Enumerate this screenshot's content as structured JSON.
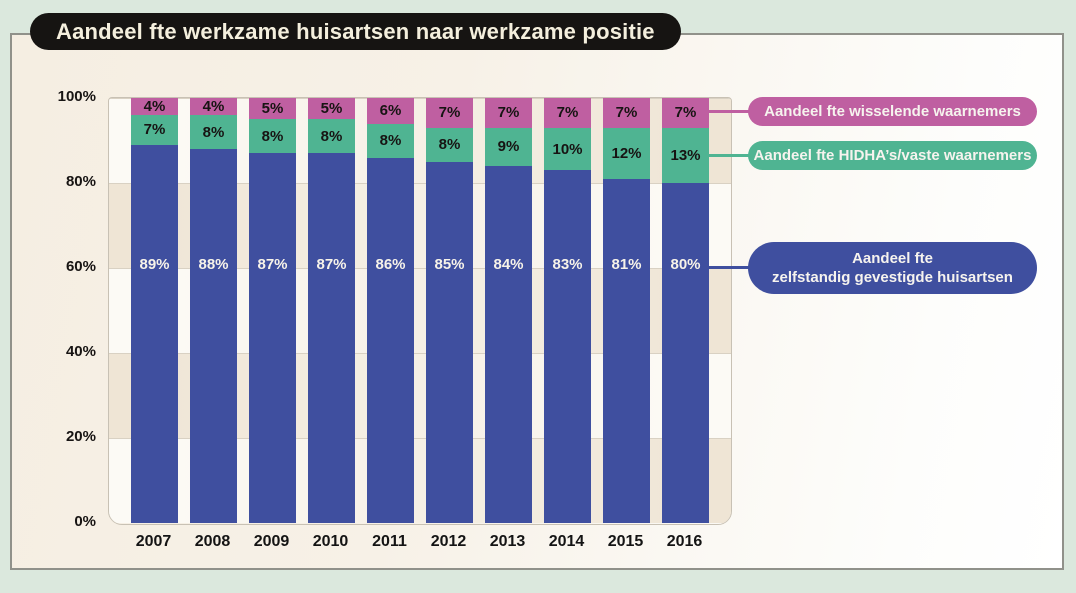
{
  "chart_data": {
    "type": "bar",
    "stacked": true,
    "title": "Aandeel fte werkzame huisartsen naar werkzame positie",
    "categories": [
      "2007",
      "2008",
      "2009",
      "2010",
      "2011",
      "2012",
      "2013",
      "2014",
      "2015",
      "2016"
    ],
    "series": [
      {
        "name": "Aandeel fte zelfstandig gevestigde huisartsen",
        "color": "#3f4f9f",
        "label_color": "#f7f3e9",
        "values": [
          89,
          88,
          87,
          87,
          86,
          85,
          84,
          83,
          81,
          80
        ]
      },
      {
        "name": "Aandeel fte HIDHA’s/vaste waarnemers",
        "color": "#4fb492",
        "label_color": "#171413",
        "values": [
          7,
          8,
          8,
          8,
          8,
          8,
          9,
          10,
          12,
          13
        ]
      },
      {
        "name": "Aandeel fte wisselende waarnemers",
        "color": "#bf5fa1",
        "label_color": "#171413",
        "values": [
          4,
          4,
          5,
          5,
          6,
          7,
          7,
          7,
          7,
          7
        ]
      }
    ],
    "ylim": [
      0,
      100
    ],
    "yticks": [
      "100%",
      "80%",
      "60%",
      "40%",
      "20%",
      "0%"
    ],
    "value_suffix": "%",
    "grid": true,
    "legend_position": "right",
    "band_colors": {
      "beige": "#efe5d5",
      "light": "#fcfaf5"
    }
  },
  "legend": {
    "wisselende_label": "Aandeel fte wisselende waarnemers",
    "hidha_label": "Aandeel fte HIDHA’s/vaste waarnemers",
    "zelfstandig_line1": "Aandeel fte",
    "zelfstandig_line2": "zelfstandig gevestigde huisartsen"
  },
  "colors": {
    "background": "#dbe8dd",
    "panel": "#f5eee2",
    "title_bg": "#161412",
    "title_text": "#f4efdd",
    "blue": "#3f4f9f",
    "green": "#4fb492",
    "pink": "#bf5fa1"
  }
}
